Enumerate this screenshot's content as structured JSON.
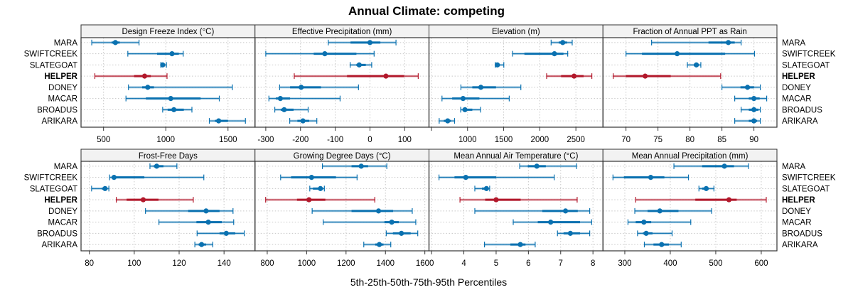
{
  "chart_data": {
    "type": "dot-interval",
    "title": "Annual Climate: competing",
    "xlabel": "5th-25th-50th-75th-95th Percentiles",
    "ylabel": "",
    "legend": "none",
    "grid": true,
    "colors": {
      "highlight": "#B2182B",
      "default": "#0A71B0",
      "strip_bg": "#F2F2F2",
      "grid": "#C8C8C8",
      "frame": "#333333"
    },
    "sites": [
      "MARA",
      "SWIFTCREEK",
      "SLATEGOAT",
      "HELPER",
      "DONEY",
      "MACAR",
      "BROADUS",
      "ARIKARA"
    ],
    "highlight_site": "HELPER",
    "percentile_keys": [
      "p5",
      "p25",
      "p50",
      "p75",
      "p95"
    ],
    "panels": [
      {
        "name": "Design Freeze Index (°C)",
        "xlim": [
          319,
          1717
        ],
        "ticks": [
          500,
          1000,
          1500
        ],
        "tick_labels": [
          "500",
          "1000",
          "1500"
        ],
        "values": {
          "MARA": [
            405,
            565,
            595,
            630,
            785
          ],
          "SWIFTCREEK": [
            695,
            930,
            1050,
            1105,
            1140
          ],
          "SLATEGOAT": [
            960,
            965,
            975,
            985,
            1005
          ],
          "HELPER": [
            430,
            745,
            830,
            880,
            1010
          ],
          "DONEY": [
            700,
            810,
            855,
            905,
            1535
          ],
          "MACAR": [
            680,
            840,
            1040,
            1280,
            1430
          ],
          "BROADUS": [
            975,
            1015,
            1065,
            1145,
            1210
          ],
          "ARIKARA": [
            1350,
            1395,
            1425,
            1500,
            1640
          ]
        }
      },
      {
        "name": "Effective Precipitation (mm)",
        "xlim": [
          -331,
          170
        ],
        "ticks": [
          -300,
          -200,
          -100,
          0,
          100
        ],
        "tick_labels": [
          "-300",
          "-200",
          "-100",
          "0",
          "100"
        ],
        "values": {
          "MARA": [
            -120,
            -56,
            0,
            30,
            75
          ],
          "SWIFTCREEK": [
            -300,
            -162,
            -130,
            -39,
            12
          ],
          "SLATEGOAT": [
            -57,
            -39,
            -31,
            -12,
            5
          ],
          "HELPER": [
            -218,
            -66,
            46,
            98,
            139
          ],
          "DONEY": [
            -260,
            -230,
            -198,
            -141,
            -33
          ],
          "MACAR": [
            -291,
            -271,
            -258,
            -230,
            -86
          ],
          "BROADUS": [
            -274,
            -257,
            -247,
            -220,
            -178
          ],
          "ARIKARA": [
            -231,
            -209,
            -193,
            -175,
            -153
          ]
        }
      },
      {
        "name": "Elevation (m)",
        "xlim": [
          466,
          2875
        ],
        "ticks": [
          500,
          1000,
          1500,
          2000,
          2500
        ],
        "tick_labels": [
          "",
          "1000",
          "1500",
          "2000",
          "2500"
        ],
        "values": {
          "MARA": [
            2157,
            2262,
            2318,
            2377,
            2449
          ],
          "SWIFTCREEK": [
            1623,
            1787,
            2203,
            2328,
            2387
          ],
          "SLATEGOAT": [
            1384,
            1400,
            1413,
            1443,
            1502
          ],
          "HELPER": [
            2095,
            2295,
            2475,
            2607,
            2721
          ],
          "DONEY": [
            908,
            1066,
            1184,
            1394,
            1738
          ],
          "MACAR": [
            646,
            787,
            938,
            1164,
            1577
          ],
          "BROADUS": [
            905,
            934,
            964,
            1066,
            1180
          ],
          "ARIKARA": [
            607,
            672,
            725,
            770,
            820
          ]
        }
      },
      {
        "name": "Fraction of Annual PPT as Rain",
        "xlim": [
          66.4,
          93.6
        ],
        "ticks": [
          70,
          75,
          80,
          85,
          90
        ],
        "tick_labels": [
          "70",
          "75",
          "80",
          "85",
          "90"
        ],
        "values": {
          "MARA": [
            74,
            82.9,
            86,
            87,
            88
          ],
          "SWIFTCREEK": [
            70,
            72.5,
            78,
            85.5,
            90.1
          ],
          "SLATEGOAT": [
            79.6,
            80.6,
            81,
            81.3,
            81.7
          ],
          "HELPER": [
            68,
            70,
            73,
            77,
            84.8
          ],
          "DONEY": [
            85,
            87.9,
            89,
            90,
            91
          ],
          "MACAR": [
            87,
            89.2,
            90,
            90.9,
            92
          ],
          "BROADUS": [
            88,
            89.2,
            90,
            90.7,
            91
          ],
          "ARIKARA": [
            87,
            89.2,
            90,
            90.5,
            91
          ]
        }
      },
      {
        "name": "Frost-Free Days",
        "xlim": [
          76.3,
          153.8
        ],
        "ticks": [
          80,
          100,
          120,
          140
        ],
        "tick_labels": [
          "80",
          "100",
          "120",
          "140"
        ],
        "values": {
          "MARA": [
            107,
            108.7,
            110,
            113,
            119
          ],
          "SWIFTCREEK": [
            89,
            90,
            91,
            104.5,
            131
          ],
          "SLATEGOAT": [
            81,
            85.6,
            87,
            87.7,
            88.7
          ],
          "HELPER": [
            92,
            96.6,
            104,
            110.8,
            126.3
          ],
          "DONEY": [
            105,
            124,
            132,
            138,
            144
          ],
          "MACAR": [
            111,
            127.7,
            133,
            139,
            144.3
          ],
          "BROADUS": [
            128,
            138,
            141,
            145,
            149
          ],
          "ARIKARA": [
            127,
            128.7,
            130,
            132,
            135
          ]
        }
      },
      {
        "name": "Growing Degree Days (°C)",
        "xlim": [
          738,
          1621
        ],
        "ticks": [
          800,
          1000,
          1200,
          1400,
          1600
        ],
        "tick_labels": [
          "800",
          "1000",
          "1200",
          "1400",
          "1600"
        ],
        "values": {
          "MARA": [
            1080,
            1228,
            1277,
            1312,
            1407
          ],
          "SWIFTCREEK": [
            868,
            921,
            1025,
            1149,
            1256
          ],
          "SLATEGOAT": [
            1016,
            1032,
            1070,
            1078,
            1090
          ],
          "HELPER": [
            792,
            951,
            1012,
            1095,
            1346
          ],
          "DONEY": [
            1028,
            1228,
            1365,
            1439,
            1536
          ],
          "MACAR": [
            1084,
            1395,
            1432,
            1468,
            1554
          ],
          "BROADUS": [
            1404,
            1438,
            1481,
            1528,
            1564
          ],
          "ARIKARA": [
            1290,
            1348,
            1369,
            1390,
            1427
          ]
        }
      },
      {
        "name": "Mean Annual Air Temperature (°C)",
        "xlim": [
          2.92,
          8.31
        ],
        "ticks": [
          3,
          4,
          5,
          6,
          7,
          8
        ],
        "tick_labels": [
          "",
          "4",
          "5",
          "6",
          "7",
          "8"
        ],
        "values": {
          "MARA": [
            5.73,
            5.98,
            6.26,
            6.54,
            7.49
          ],
          "SWIFTCREEK": [
            3.23,
            3.71,
            4.06,
            5.0,
            6.8
          ],
          "SLATEGOAT": [
            4.34,
            4.56,
            4.7,
            4.74,
            4.8
          ],
          "HELPER": [
            3.88,
            4.66,
            5.0,
            5.76,
            7.51
          ],
          "DONEY": [
            4.34,
            6.43,
            7.15,
            7.53,
            7.9
          ],
          "MACAR": [
            5.53,
            6.29,
            6.69,
            7.6,
            7.96
          ],
          "BROADUS": [
            6.9,
            7.09,
            7.3,
            7.6,
            7.9
          ],
          "ARIKARA": [
            4.64,
            5.44,
            5.75,
            5.91,
            6.21
          ]
        }
      },
      {
        "name": "Mean Annual Precipitation (mm)",
        "xlim": [
          252,
          634.5
        ],
        "ticks": [
          300,
          400,
          500,
          600
        ],
        "tick_labels": [
          "300",
          "400",
          "500",
          "600"
        ],
        "values": {
          "MARA": [
            408,
            470,
            519,
            540,
            572
          ],
          "SWIFTCREEK": [
            274,
            298,
            357,
            387,
            440
          ],
          "SLATEGOAT": [
            463,
            470,
            479,
            484,
            496
          ],
          "HELPER": [
            324,
            455,
            529,
            546,
            611
          ],
          "DONEY": [
            322,
            350,
            377,
            418,
            491
          ],
          "MACAR": [
            307,
            324,
            342,
            358,
            445
          ],
          "BROADUS": [
            328,
            340,
            347,
            361,
            404
          ],
          "ARIKARA": [
            343,
            363,
            381,
            397,
            424
          ]
        }
      }
    ]
  }
}
